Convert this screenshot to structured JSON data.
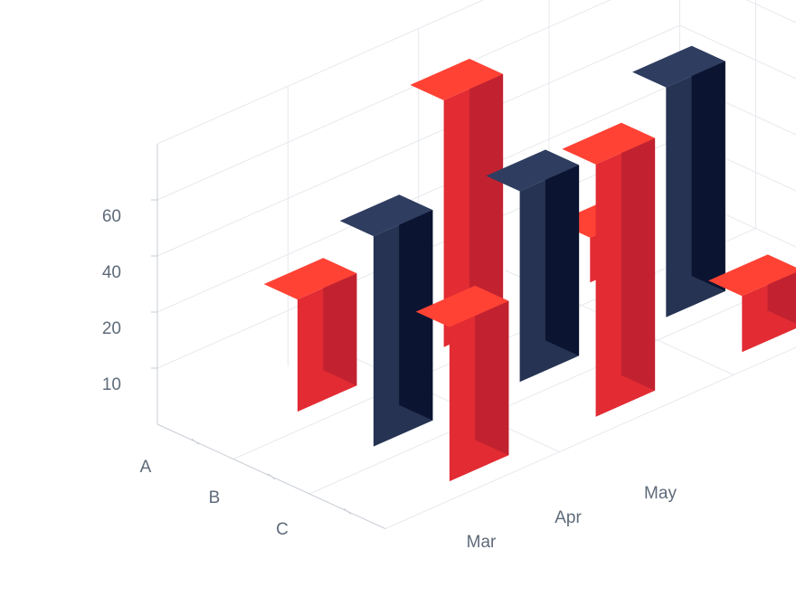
{
  "chart_data": {
    "type": "bar",
    "categories": [
      "Mar",
      "Apr",
      "May"
    ],
    "depth_categories": [
      "A",
      "B",
      "C"
    ],
    "y_ticks": [
      "10",
      "20",
      "40",
      "60"
    ],
    "series": [
      {
        "depth": "A",
        "values": [
          20,
          68,
          8
        ]
      },
      {
        "depth": "B",
        "values": [
          55,
          48,
          62
        ]
      },
      {
        "depth": "C",
        "values": [
          35,
          70,
          10
        ]
      }
    ],
    "colors": {
      "red_front": "#e22b33",
      "red_side": "#c22230",
      "red_top": "#ff4234",
      "navy_front": "#263353",
      "navy_side": "#0b1430",
      "navy_top": "#2f3d60"
    }
  }
}
